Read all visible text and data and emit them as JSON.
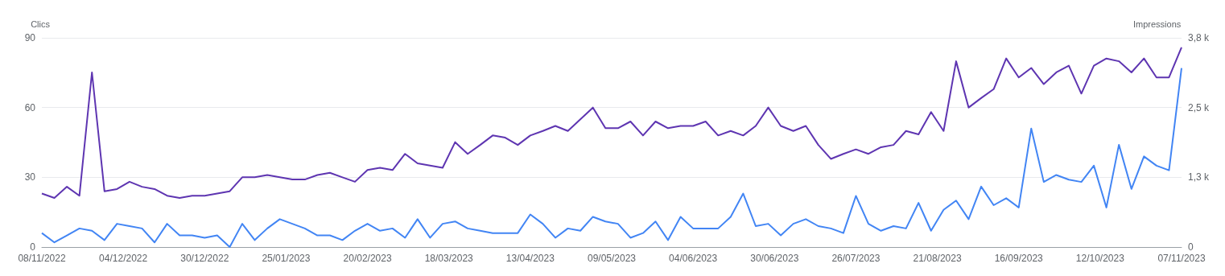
{
  "chart_data": {
    "type": "line",
    "ylabel": "Clics",
    "y2label": "Impressions",
    "marker": "none",
    "grid": "y",
    "x": [
      "2022-11-08",
      "2022-11-12",
      "2022-11-16",
      "2022-11-20",
      "2022-11-24",
      "2022-11-28",
      "2022-12-02",
      "2022-12-06",
      "2022-12-10",
      "2022-12-14",
      "2022-12-18",
      "2022-12-22",
      "2022-12-26",
      "2022-12-30",
      "2023-01-03",
      "2023-01-07",
      "2023-01-11",
      "2023-01-15",
      "2023-01-19",
      "2023-01-23",
      "2023-01-27",
      "2023-01-31",
      "2023-02-04",
      "2023-02-08",
      "2023-02-12",
      "2023-02-16",
      "2023-02-20",
      "2023-02-24",
      "2023-02-28",
      "2023-03-04",
      "2023-03-08",
      "2023-03-12",
      "2023-03-16",
      "2023-03-20",
      "2023-03-24",
      "2023-03-28",
      "2023-04-01",
      "2023-04-05",
      "2023-04-09",
      "2023-04-13",
      "2023-04-17",
      "2023-04-21",
      "2023-04-25",
      "2023-04-29",
      "2023-05-03",
      "2023-05-07",
      "2023-05-11",
      "2023-05-15",
      "2023-05-19",
      "2023-05-23",
      "2023-05-27",
      "2023-05-31",
      "2023-06-04",
      "2023-06-08",
      "2023-06-12",
      "2023-06-16",
      "2023-06-20",
      "2023-06-24",
      "2023-06-28",
      "2023-07-02",
      "2023-07-06",
      "2023-07-10",
      "2023-07-14",
      "2023-07-18",
      "2023-07-22",
      "2023-07-26",
      "2023-07-30",
      "2023-08-03",
      "2023-08-07",
      "2023-08-11",
      "2023-08-15",
      "2023-08-19",
      "2023-08-23",
      "2023-08-27",
      "2023-08-31",
      "2023-09-04",
      "2023-09-08",
      "2023-09-12",
      "2023-09-16",
      "2023-09-20",
      "2023-09-24",
      "2023-09-28",
      "2023-10-02",
      "2023-10-06",
      "2023-10-10",
      "2023-10-14",
      "2023-10-18",
      "2023-10-22",
      "2023-10-26",
      "2023-10-30",
      "2023-11-03",
      "2023-11-07"
    ],
    "series": [
      {
        "color": "#5e35b1",
        "axis": "y2",
        "values": [
          960,
          880,
          1080,
          920,
          3130,
          1000,
          1040,
          1170,
          1080,
          1040,
          920,
          880,
          920,
          920,
          960,
          1000,
          1250,
          1250,
          1290,
          1250,
          1210,
          1210,
          1290,
          1330,
          1250,
          1170,
          1380,
          1420,
          1380,
          1670,
          1500,
          1460,
          1420,
          1880,
          1670,
          1830,
          2000,
          1960,
          1830,
          2000,
          2080,
          2170,
          2080,
          2290,
          2500,
          2130,
          2130,
          2250,
          2000,
          2250,
          2130,
          2170,
          2170,
          2250,
          2000,
          2080,
          2000,
          2170,
          2500,
          2170,
          2080,
          2170,
          1830,
          1580,
          1670,
          1750,
          1670,
          1790,
          1830,
          2080,
          2020,
          2420,
          2080,
          3330,
          2500,
          2670,
          2830,
          3380,
          3040,
          3210,
          2920,
          3130,
          3250,
          2750,
          3250,
          3380,
          3330,
          3130,
          3380,
          3040,
          3040,
          3580
        ]
      },
      {
        "color": "#4285f4",
        "values": [
          6,
          2,
          5,
          8,
          7,
          3,
          10,
          9,
          8,
          2,
          10,
          5,
          5,
          4,
          5,
          0,
          10,
          3,
          8,
          12,
          10,
          8,
          5,
          5,
          3,
          7,
          10,
          7,
          8,
          4,
          12,
          4,
          10,
          11,
          8,
          7,
          6,
          6,
          6,
          14,
          10,
          4,
          8,
          7,
          13,
          11,
          10,
          4,
          6,
          11,
          3,
          13,
          8,
          8,
          8,
          13,
          23,
          9,
          10,
          5,
          10,
          12,
          9,
          8,
          6,
          22,
          10,
          7,
          9,
          8,
          19,
          7,
          16,
          20,
          12,
          26,
          18,
          21,
          17,
          51,
          28,
          31,
          29,
          28,
          35,
          17,
          44,
          25,
          39,
          35,
          33,
          77
        ]
      }
    ],
    "xlim": [
      "2022-11-08",
      "2023-11-07"
    ],
    "xticks": [
      {
        "value": "2022-11-08",
        "label": "08/11/2022"
      },
      {
        "value": "2022-12-04",
        "label": "04/12/2022"
      },
      {
        "value": "2022-12-30",
        "label": "30/12/2022"
      },
      {
        "value": "2023-01-25",
        "label": "25/01/2023"
      },
      {
        "value": "2023-02-20",
        "label": "20/02/2023"
      },
      {
        "value": "2023-03-18",
        "label": "18/03/2023"
      },
      {
        "value": "2023-04-13",
        "label": "13/04/2023"
      },
      {
        "value": "2023-05-09",
        "label": "09/05/2023"
      },
      {
        "value": "2023-06-04",
        "label": "04/06/2023"
      },
      {
        "value": "2023-06-30",
        "label": "30/06/2023"
      },
      {
        "value": "2023-07-26",
        "label": "26/07/2023"
      },
      {
        "value": "2023-08-21",
        "label": "21/08/2023"
      },
      {
        "value": "2023-09-16",
        "label": "16/09/2023"
      },
      {
        "value": "2023-10-12",
        "label": "12/10/2023"
      },
      {
        "value": "2023-11-07",
        "label": "07/11/2023"
      }
    ],
    "ylim": [
      0,
      90
    ],
    "yticks": [
      0,
      30,
      60,
      90
    ],
    "y2lim": [
      0,
      3750
    ],
    "y2ticks": [
      0,
      {
        "value": 1250,
        "label": "1,3 k"
      },
      {
        "value": 2500,
        "label": "2,5 k"
      },
      {
        "value": 3750,
        "label": "3,8 k"
      }
    ]
  }
}
